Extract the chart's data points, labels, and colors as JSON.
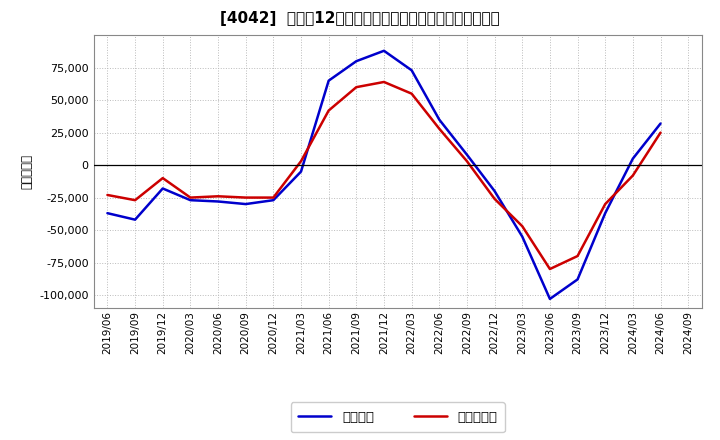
{
  "title": "[4042]  利益の12か月移動合計の対前年同期増減額の推移",
  "ylabel": "（百万円）",
  "ylim": [
    -110000,
    100000
  ],
  "yticks": [
    -100000,
    -75000,
    -50000,
    -25000,
    0,
    25000,
    50000,
    75000
  ],
  "background_color": "#ffffff",
  "plot_bg_color": "#ffffff",
  "grid_color": "#aaaaaa",
  "dates": [
    "2019/06",
    "2019/09",
    "2019/12",
    "2020/03",
    "2020/06",
    "2020/09",
    "2020/12",
    "2021/03",
    "2021/06",
    "2021/09",
    "2021/12",
    "2022/03",
    "2022/06",
    "2022/09",
    "2022/12",
    "2023/03",
    "2023/06",
    "2023/09",
    "2023/12",
    "2024/03",
    "2024/06",
    "2024/09"
  ],
  "keijo_rieki": [
    -37000,
    -42000,
    -18000,
    -27000,
    -28000,
    -30000,
    -27000,
    -5000,
    65000,
    80000,
    88000,
    73000,
    35000,
    8000,
    -20000,
    -55000,
    -103000,
    -88000,
    -37000,
    5000,
    32000,
    null
  ],
  "junrieki": [
    -23000,
    -27000,
    -10000,
    -25000,
    -24000,
    -25000,
    -25000,
    3000,
    42000,
    60000,
    64000,
    55000,
    28000,
    3000,
    -26000,
    -47000,
    -80000,
    -70000,
    -30000,
    -8000,
    25000,
    null
  ],
  "keijo_color": "#0000cc",
  "jun_color": "#cc0000",
  "line_width": 1.8,
  "legend_labels": [
    "経常利益",
    "当期純利益"
  ],
  "xtick_labels": [
    "2019/06",
    "2019/09",
    "2019/12",
    "2020/03",
    "2020/06",
    "2020/09",
    "2020/12",
    "2021/03",
    "2021/06",
    "2021/09",
    "2021/12",
    "2022/03",
    "2022/06",
    "2022/09",
    "2022/12",
    "2023/03",
    "2023/06",
    "2023/09",
    "2023/12",
    "2024/03",
    "2024/06",
    "2024/09"
  ]
}
